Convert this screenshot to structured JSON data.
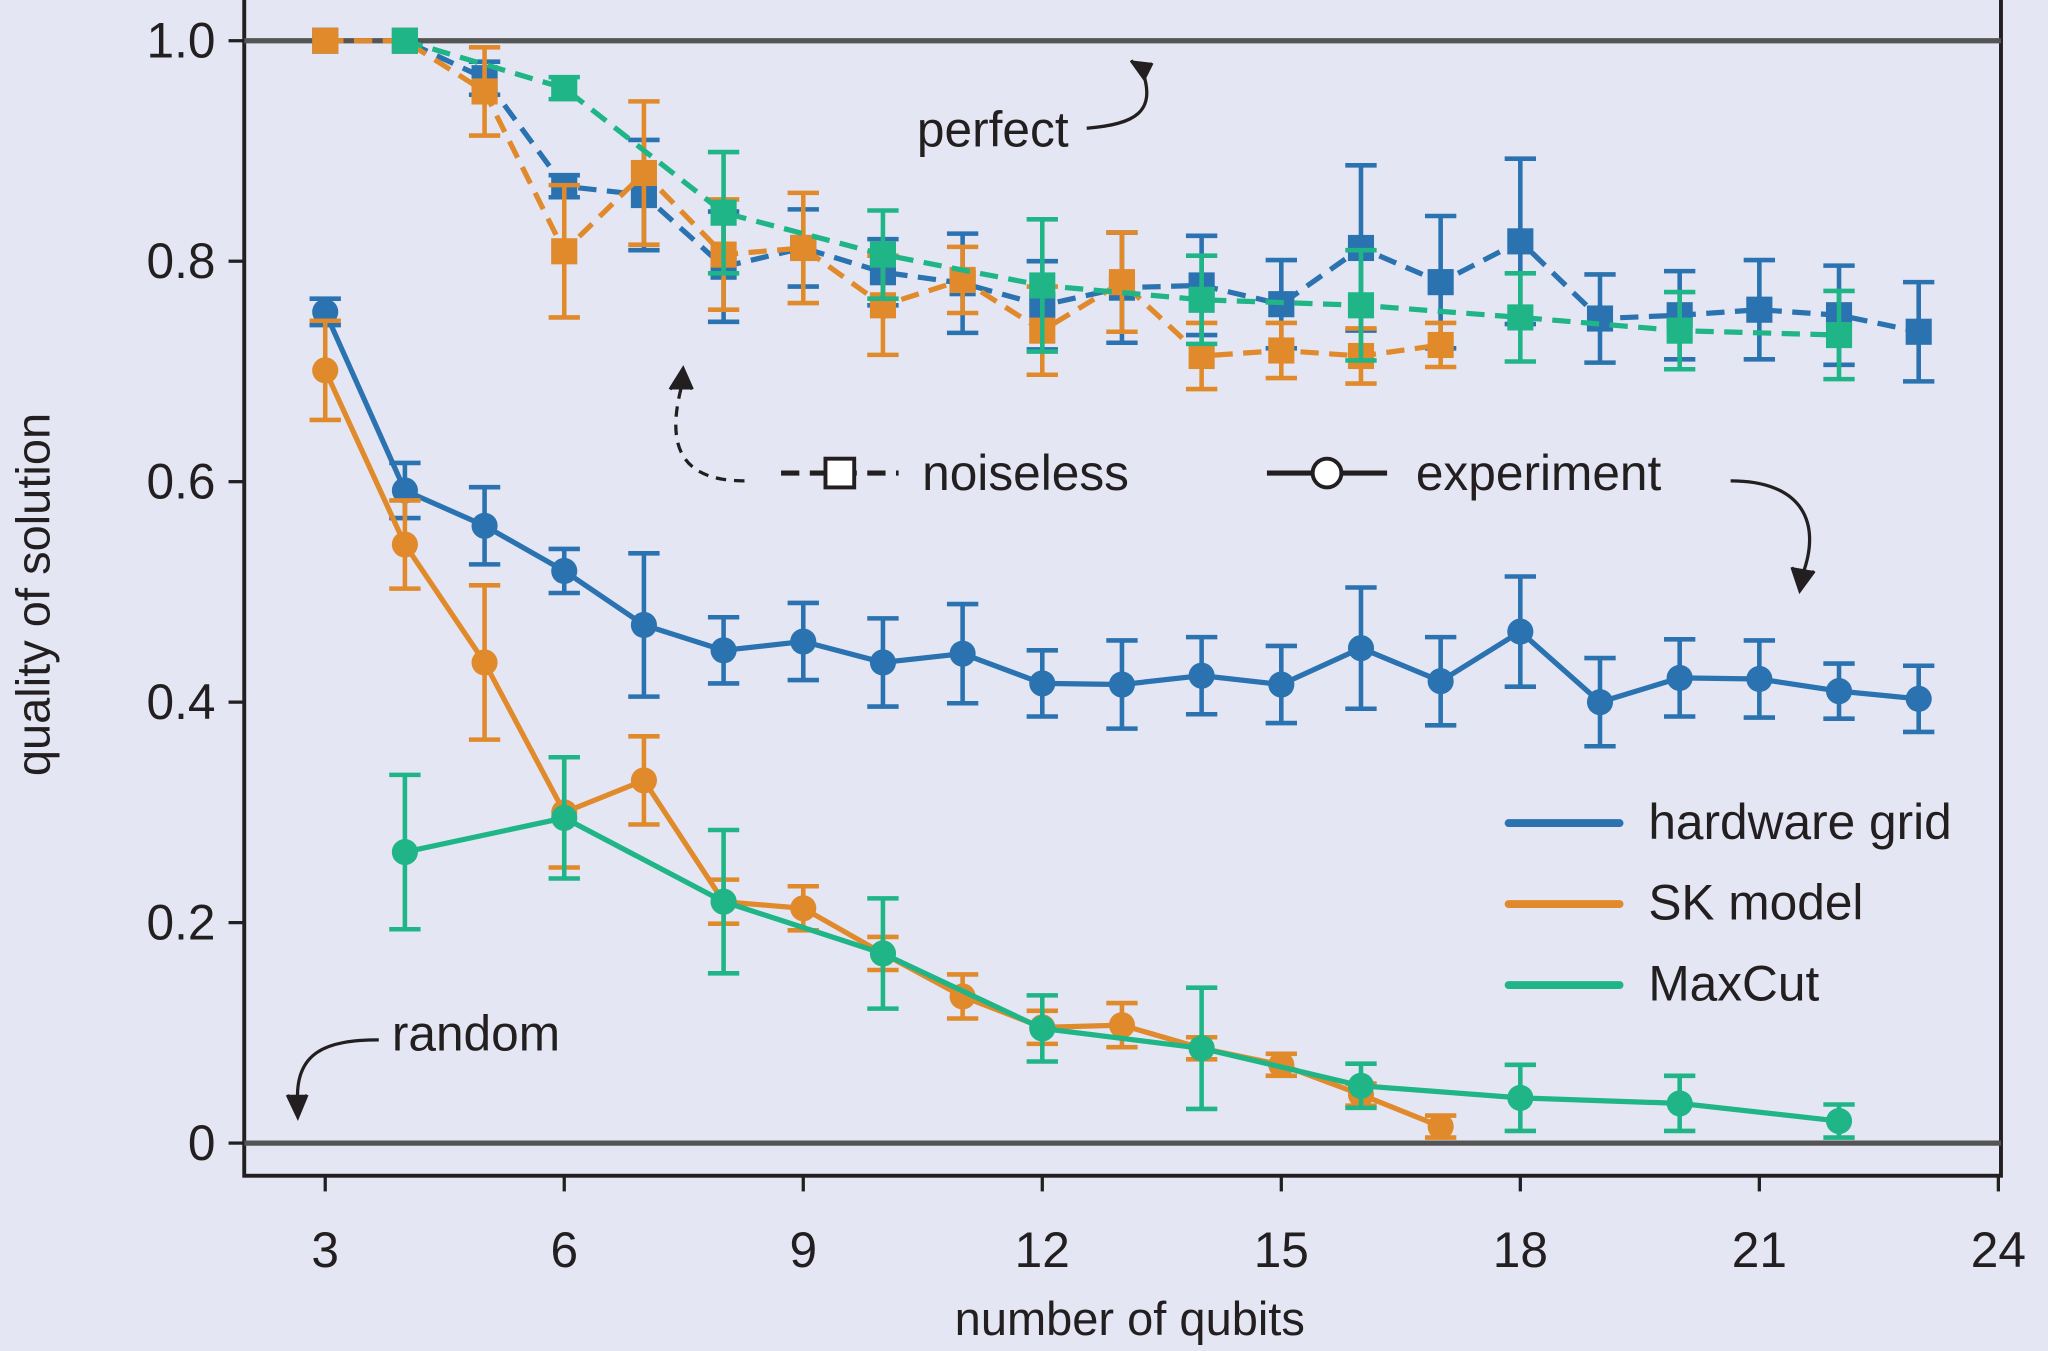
{
  "chart_data": {
    "type": "line",
    "xlabel": "number of qubits",
    "ylabel": "quality of solution",
    "xlim": [
      2,
      24
    ],
    "ylim": [
      0,
      1
    ],
    "xticks": [
      "3",
      "6",
      "9",
      "12",
      "15",
      "18",
      "21",
      "24"
    ],
    "yticks": [
      "0",
      "0.2",
      "0.4",
      "0.6",
      "0.8",
      "1.0"
    ],
    "grid": false,
    "legend": {
      "placement": "bottom-right",
      "entries": [
        "hardware grid",
        "SK model",
        "MaxCut"
      ]
    },
    "style_legend": {
      "noiseless": "noiseless",
      "experiment": "experiment"
    },
    "annotations": {
      "perfect": "perfect",
      "random": "random"
    },
    "reference_lines": [
      1.0,
      0.0
    ],
    "colors": {
      "hardware grid": "#2a72b0",
      "SK model": "#e08a2c",
      "MaxCut": "#1fb587"
    },
    "series": [
      {
        "name": "hardware grid",
        "kind": "experiment",
        "x": [
          3,
          4,
          5,
          6,
          7,
          8,
          9,
          10,
          11,
          12,
          13,
          14,
          15,
          16,
          17,
          18,
          19,
          20,
          21,
          22,
          23
        ],
        "y": [
          0.754,
          0.592,
          0.56,
          0.519,
          0.47,
          0.447,
          0.455,
          0.436,
          0.444,
          0.417,
          0.416,
          0.424,
          0.416,
          0.449,
          0.419,
          0.464,
          0.4,
          0.422,
          0.421,
          0.41,
          0.403
        ],
        "err": [
          0.012,
          0.025,
          0.035,
          0.02,
          0.065,
          0.03,
          0.035,
          0.04,
          0.045,
          0.03,
          0.04,
          0.035,
          0.035,
          0.055,
          0.04,
          0.05,
          0.04,
          0.035,
          0.035,
          0.025,
          0.03
        ]
      },
      {
        "name": "SK model",
        "kind": "experiment",
        "x": [
          3,
          4,
          5,
          6,
          7,
          8,
          9,
          10,
          11,
          12,
          13,
          14,
          15,
          16,
          17
        ],
        "y": [
          0.701,
          0.543,
          0.436,
          0.3,
          0.329,
          0.219,
          0.213,
          0.172,
          0.133,
          0.105,
          0.107,
          0.086,
          0.071,
          0.044,
          0.015
        ],
        "err": [
          0.045,
          0.04,
          0.07,
          0.05,
          0.04,
          0.02,
          0.02,
          0.015,
          0.02,
          0.015,
          0.02,
          0.01,
          0.01,
          0.01,
          0.01
        ]
      },
      {
        "name": "MaxCut",
        "kind": "experiment",
        "x": [
          4,
          6,
          8,
          10,
          12,
          14,
          16,
          18,
          20,
          22
        ],
        "y": [
          0.264,
          0.295,
          0.219,
          0.172,
          0.104,
          0.086,
          0.052,
          0.041,
          0.036,
          0.02
        ],
        "err": [
          0.07,
          0.055,
          0.065,
          0.05,
          0.03,
          0.055,
          0.02,
          0.03,
          0.025,
          0.015
        ]
      },
      {
        "name": "hardware grid",
        "kind": "noiseless",
        "x": [
          3,
          4,
          5,
          6,
          7,
          8,
          9,
          10,
          11,
          12,
          13,
          14,
          15,
          16,
          17,
          18,
          19,
          20,
          21,
          22,
          23
        ],
        "y": [
          1.0,
          1.0,
          0.966,
          0.868,
          0.86,
          0.795,
          0.812,
          0.79,
          0.78,
          0.76,
          0.776,
          0.778,
          0.761,
          0.812,
          0.781,
          0.818,
          0.748,
          0.751,
          0.756,
          0.751,
          0.736
        ],
        "err": [
          0,
          0,
          0.015,
          0.01,
          0.05,
          0.05,
          0.035,
          0.03,
          0.045,
          0.04,
          0.05,
          0.045,
          0.04,
          0.075,
          0.06,
          0.075,
          0.04,
          0.04,
          0.045,
          0.045,
          0.045
        ]
      },
      {
        "name": "SK model",
        "kind": "noiseless",
        "x": [
          3,
          4,
          5,
          6,
          7,
          8,
          9,
          10,
          11,
          12,
          13,
          14,
          15,
          16,
          17
        ],
        "y": [
          1.0,
          1.0,
          0.954,
          0.809,
          0.88,
          0.806,
          0.812,
          0.76,
          0.783,
          0.737,
          0.781,
          0.714,
          0.719,
          0.714,
          0.724
        ],
        "err": [
          0,
          0,
          0.04,
          0.06,
          0.065,
          0.05,
          0.05,
          0.045,
          0.03,
          0.04,
          0.045,
          0.03,
          0.025,
          0.025,
          0.02
        ]
      },
      {
        "name": "MaxCut",
        "kind": "noiseless",
        "x": [
          4,
          6,
          8,
          10,
          12,
          14,
          16,
          18,
          20,
          22
        ],
        "y": [
          1.0,
          0.957,
          0.844,
          0.806,
          0.778,
          0.765,
          0.76,
          0.749,
          0.737,
          0.733
        ],
        "err": [
          0,
          0.01,
          0.055,
          0.04,
          0.06,
          0.04,
          0.05,
          0.04,
          0.035,
          0.04
        ]
      }
    ]
  }
}
